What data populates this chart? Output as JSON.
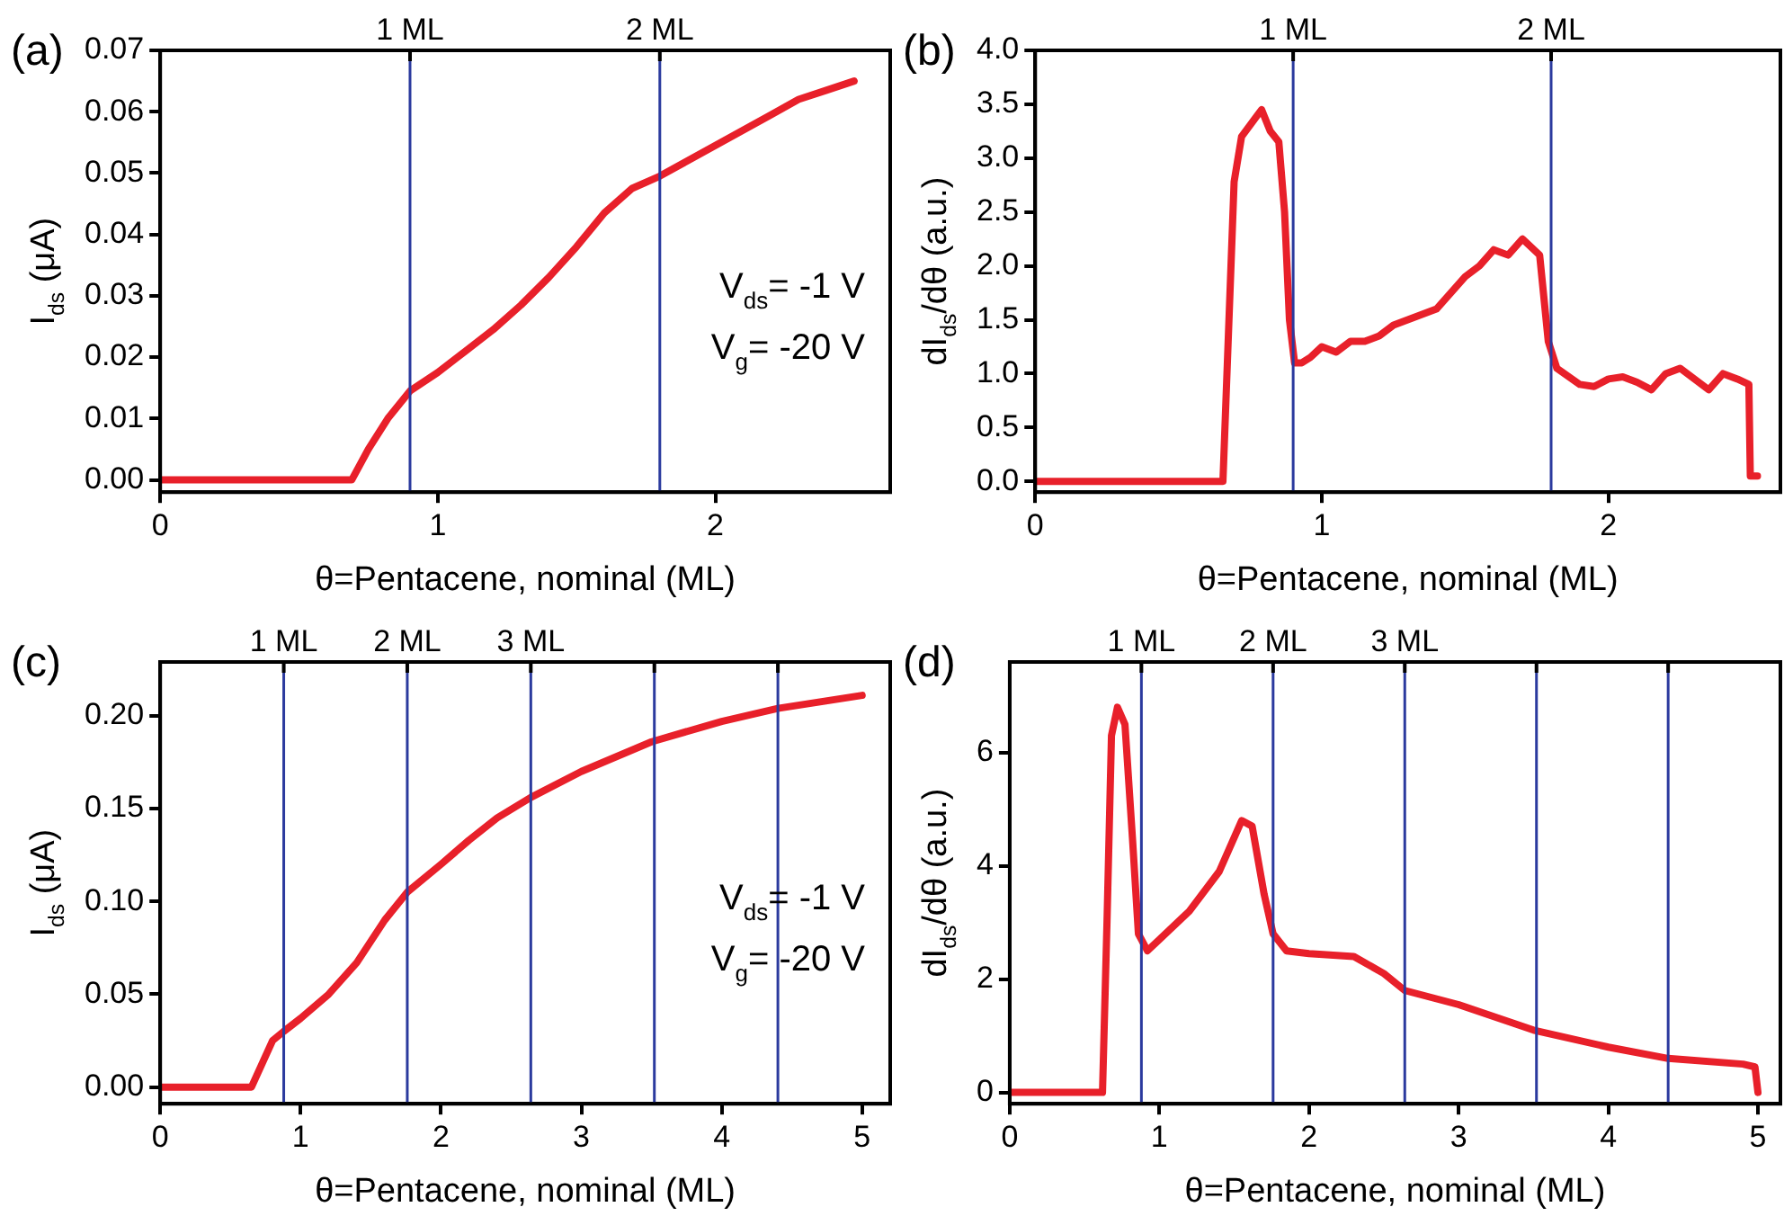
{
  "chart_data": [
    {
      "type": "line",
      "title": "(a)",
      "xlabel": "θ=Pentacene, nominal (ML)",
      "ylabel": "I$_{ds}$ (μA)",
      "legend": false,
      "marker": "none",
      "line_style": "solid",
      "color": "#e8202a",
      "x": [
        0,
        0.69,
        0.75,
        0.82,
        0.9,
        1.0,
        1.1,
        1.2,
        1.3,
        1.4,
        1.5,
        1.6,
        1.7,
        1.8,
        1.9,
        2.0,
        2.1,
        2.2,
        2.3,
        2.4,
        2.5
      ],
      "values": [
        0,
        0,
        0.005,
        0.01,
        0.0145,
        0.0175,
        0.021,
        0.0245,
        0.0285,
        0.033,
        0.038,
        0.0435,
        0.0475,
        0.0495,
        0.052,
        0.0545,
        0.057,
        0.0595,
        0.062,
        0.0635,
        0.065
      ],
      "xlim": [
        0,
        2.63
      ],
      "xticks": [
        0,
        1,
        2
      ],
      "ylim": [
        -0.002,
        0.07
      ],
      "yticks": [
        {
          "value": 0,
          "label": "0.00"
        },
        {
          "value": 0.01,
          "label": "0.01"
        },
        {
          "value": 0.02,
          "label": "0.02"
        },
        {
          "value": 0.03,
          "label": "0.03"
        },
        {
          "value": 0.04,
          "label": "0.04"
        },
        {
          "value": 0.05,
          "label": "0.05"
        },
        {
          "value": 0.06,
          "label": "0.06"
        },
        {
          "value": 0.07,
          "label": "0.07"
        }
      ],
      "ref_lines": [
        {
          "axis": "x",
          "value": 0.9,
          "label": "1 ML",
          "color": "#2b3a9e"
        },
        {
          "axis": "x",
          "value": 1.8,
          "label": "2 ML",
          "color": "#2b3a9e"
        }
      ],
      "annotations": [
        "V$_{ds}$= -1 V",
        "V$_{g}$= -20 V"
      ]
    },
    {
      "type": "line",
      "title": "(b)",
      "xlabel": "θ=Pentacene, nominal (ML)",
      "ylabel": "dI$_{ds}$/dθ (a.u.)",
      "legend": false,
      "marker": "none",
      "line_style": "solid",
      "color": "#e8202a",
      "x": [
        0,
        0.655,
        0.694,
        0.72,
        0.77,
        0.79,
        0.82,
        0.85,
        0.87,
        0.887,
        0.905,
        0.93,
        0.96,
        1.0,
        1.05,
        1.1,
        1.15,
        1.2,
        1.25,
        1.3,
        1.35,
        1.4,
        1.45,
        1.5,
        1.55,
        1.6,
        1.65,
        1.7,
        1.76,
        1.79,
        1.82,
        1.9,
        1.95,
        2.0,
        2.05,
        2.1,
        2.15,
        2.2,
        2.25,
        2.3,
        2.35,
        2.4,
        2.45,
        2.49,
        2.495,
        2.52
      ],
      "values": [
        0,
        0,
        2.78,
        3.2,
        3.38,
        3.45,
        3.25,
        3.15,
        2.5,
        1.5,
        1.1,
        1.1,
        1.15,
        1.25,
        1.2,
        1.3,
        1.3,
        1.35,
        1.45,
        1.5,
        1.55,
        1.6,
        1.75,
        1.9,
        2.0,
        2.15,
        2.1,
        2.25,
        2.1,
        1.3,
        1.05,
        0.9,
        0.88,
        0.95,
        0.97,
        0.92,
        0.85,
        1.0,
        1.05,
        0.95,
        0.85,
        1.0,
        0.95,
        0.9,
        0.05,
        0.05
      ],
      "xlim": [
        0,
        2.6
      ],
      "xticks": [
        0,
        1,
        2
      ],
      "ylim": [
        -0.1,
        4.0
      ],
      "yticks": [
        {
          "value": 0,
          "label": "0.0"
        },
        {
          "value": 0.5,
          "label": "0.5"
        },
        {
          "value": 1,
          "label": "1.0"
        },
        {
          "value": 1.5,
          "label": "1.5"
        },
        {
          "value": 2,
          "label": "2.0"
        },
        {
          "value": 2.5,
          "label": "2.5"
        },
        {
          "value": 3,
          "label": "3.0"
        },
        {
          "value": 3.5,
          "label": "3.5"
        },
        {
          "value": 4,
          "label": "4.0"
        }
      ],
      "ref_lines": [
        {
          "axis": "x",
          "value": 0.9,
          "label": "1 ML",
          "color": "#2b3a9e"
        },
        {
          "axis": "x",
          "value": 1.8,
          "label": "2 ML",
          "color": "#2b3a9e"
        }
      ]
    },
    {
      "type": "line",
      "title": "(c)",
      "xlabel": "θ=Pentacene, nominal (ML)",
      "ylabel": "I$_{ds}$ (μA)",
      "legend": false,
      "marker": "none",
      "line_style": "solid",
      "color": "#e8202a",
      "x": [
        0,
        0.65,
        0.8,
        0.88,
        1.0,
        1.2,
        1.4,
        1.6,
        1.76,
        2.0,
        2.2,
        2.4,
        2.64,
        3.0,
        3.5,
        4.0,
        4.4,
        5.0
      ],
      "values": [
        0,
        0,
        0.025,
        0.03,
        0.037,
        0.05,
        0.067,
        0.09,
        0.105,
        0.12,
        0.133,
        0.145,
        0.156,
        0.17,
        0.186,
        0.197,
        0.204,
        0.211
      ],
      "xlim": [
        0,
        5.2
      ],
      "xticks": [
        0,
        1,
        2,
        3,
        4,
        5
      ],
      "ylim": [
        -0.009,
        0.229
      ],
      "yticks": [
        {
          "value": 0,
          "label": "0.00"
        },
        {
          "value": 0.05,
          "label": "0.05"
        },
        {
          "value": 0.1,
          "label": "0.10"
        },
        {
          "value": 0.15,
          "label": "0.15"
        },
        {
          "value": 0.2,
          "label": "0.20"
        }
      ],
      "ref_lines": [
        {
          "axis": "x",
          "value": 0.88,
          "label": "1 ML",
          "color": "#2b3a9e"
        },
        {
          "axis": "x",
          "value": 1.76,
          "label": "2 ML",
          "color": "#2b3a9e"
        },
        {
          "axis": "x",
          "value": 2.64,
          "label": "3 ML",
          "color": "#2b3a9e"
        },
        {
          "axis": "x",
          "value": 3.52,
          "label": null,
          "color": "#2b3a9e"
        },
        {
          "axis": "x",
          "value": 4.4,
          "label": null,
          "color": "#2b3a9e"
        }
      ],
      "annotations": [
        "V$_{ds}$= -1 V",
        "V$_{g}$= -20 V"
      ]
    },
    {
      "type": "line",
      "title": "(d)",
      "xlabel": "θ=Pentacene, nominal (ML)",
      "ylabel": "dI$_{ds}$/dθ (a.u.)",
      "legend": false,
      "marker": "none",
      "line_style": "solid",
      "color": "#e8202a",
      "x": [
        0,
        0.62,
        0.65,
        0.68,
        0.72,
        0.77,
        0.82,
        0.86,
        0.92,
        1.0,
        1.2,
        1.4,
        1.55,
        1.62,
        1.7,
        1.76,
        1.85,
        2.0,
        2.3,
        2.5,
        2.64,
        3.0,
        3.5,
        4.0,
        4.4,
        4.9,
        4.98,
        5.0
      ],
      "values": [
        0,
        0,
        3,
        6.3,
        6.8,
        6.5,
        4.5,
        2.8,
        2.5,
        2.7,
        3.2,
        3.9,
        4.8,
        4.7,
        3.5,
        2.8,
        2.5,
        2.45,
        2.4,
        2.1,
        1.8,
        1.55,
        1.1,
        0.8,
        0.6,
        0.5,
        0.45,
        0
      ],
      "xlim": [
        0,
        5.15
      ],
      "xticks": [
        0,
        1,
        2,
        3,
        4,
        5
      ],
      "ylim": [
        -0.2,
        7.6
      ],
      "yticks": [
        0,
        2,
        4,
        6
      ],
      "ref_lines": [
        {
          "axis": "x",
          "value": 0.88,
          "label": "1 ML",
          "color": "#2b3a9e"
        },
        {
          "axis": "x",
          "value": 1.76,
          "label": "2 ML",
          "color": "#2b3a9e"
        },
        {
          "axis": "x",
          "value": 2.64,
          "label": "3 ML",
          "color": "#2b3a9e"
        },
        {
          "axis": "x",
          "value": 3.52,
          "label": null,
          "color": "#2b3a9e"
        },
        {
          "axis": "x",
          "value": 4.4,
          "label": null,
          "color": "#2b3a9e"
        }
      ]
    }
  ]
}
